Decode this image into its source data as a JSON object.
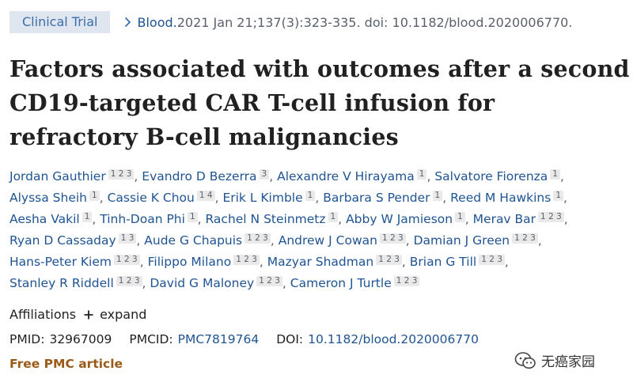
{
  "header": {
    "badge": "Clinical Trial",
    "journal": "Blood.",
    "citation": " 2021 Jan 21;137(3):323-335. doi: 10.1182/blood.2020006770."
  },
  "title": "Factors associated with outcomes after a second CD19-targeted CAR T-cell infusion for refractory B-cell malignancies",
  "authors": [
    {
      "name": "Jordan Gauthier",
      "aff": "1 2 3"
    },
    {
      "name": "Evandro D Bezerra",
      "aff": "3"
    },
    {
      "name": "Alexandre V Hirayama",
      "aff": "1"
    },
    {
      "name": "Salvatore Fiorenza",
      "aff": "1"
    },
    {
      "name": "Alyssa Sheih",
      "aff": "1"
    },
    {
      "name": "Cassie K Chou",
      "aff": "1 4"
    },
    {
      "name": "Erik L Kimble",
      "aff": "1"
    },
    {
      "name": "Barbara S Pender",
      "aff": "1"
    },
    {
      "name": "Reed M Hawkins",
      "aff": "1"
    },
    {
      "name": "Aesha Vakil",
      "aff": "1"
    },
    {
      "name": "Tinh-Doan Phi",
      "aff": "1"
    },
    {
      "name": "Rachel N Steinmetz",
      "aff": "1"
    },
    {
      "name": "Abby W Jamieson",
      "aff": "1"
    },
    {
      "name": "Merav Bar",
      "aff": "1 2 3"
    },
    {
      "name": "Ryan D Cassaday",
      "aff": "1 3"
    },
    {
      "name": "Aude G Chapuis",
      "aff": "1 2 3"
    },
    {
      "name": "Andrew J Cowan",
      "aff": "1 2 3"
    },
    {
      "name": "Damian J Green",
      "aff": "1 2 3"
    },
    {
      "name": "Hans-Peter Kiem",
      "aff": "1 2 3"
    },
    {
      "name": "Filippo Milano",
      "aff": "1 2 3"
    },
    {
      "name": "Mazyar Shadman",
      "aff": "1 2 3"
    },
    {
      "name": "Brian G Till",
      "aff": "1 2 3"
    },
    {
      "name": "Stanley R Riddell",
      "aff": "1 2 3"
    },
    {
      "name": "David G Maloney",
      "aff": "1 2 3"
    },
    {
      "name": "Cameron J Turtle",
      "aff": "1 2 3"
    }
  ],
  "affiliations": {
    "label": "Affiliations",
    "expand": "expand"
  },
  "ids": {
    "pmid_label": "PMID:",
    "pmid": "32967009",
    "pmcid_label": "PMCID:",
    "pmcid": "PMC7819764",
    "doi_label": "DOI:",
    "doi": "10.1182/blood.2020006770"
  },
  "free_pmc": "Free PMC article",
  "watermark": "无癌家园",
  "colors": {
    "link": "#205493",
    "badge_bg": "#dfe6ef",
    "free_pmc": "#9c5a19"
  },
  "icons": [
    "chevron-right-icon",
    "plus-icon",
    "wechat-logo-icon"
  ]
}
